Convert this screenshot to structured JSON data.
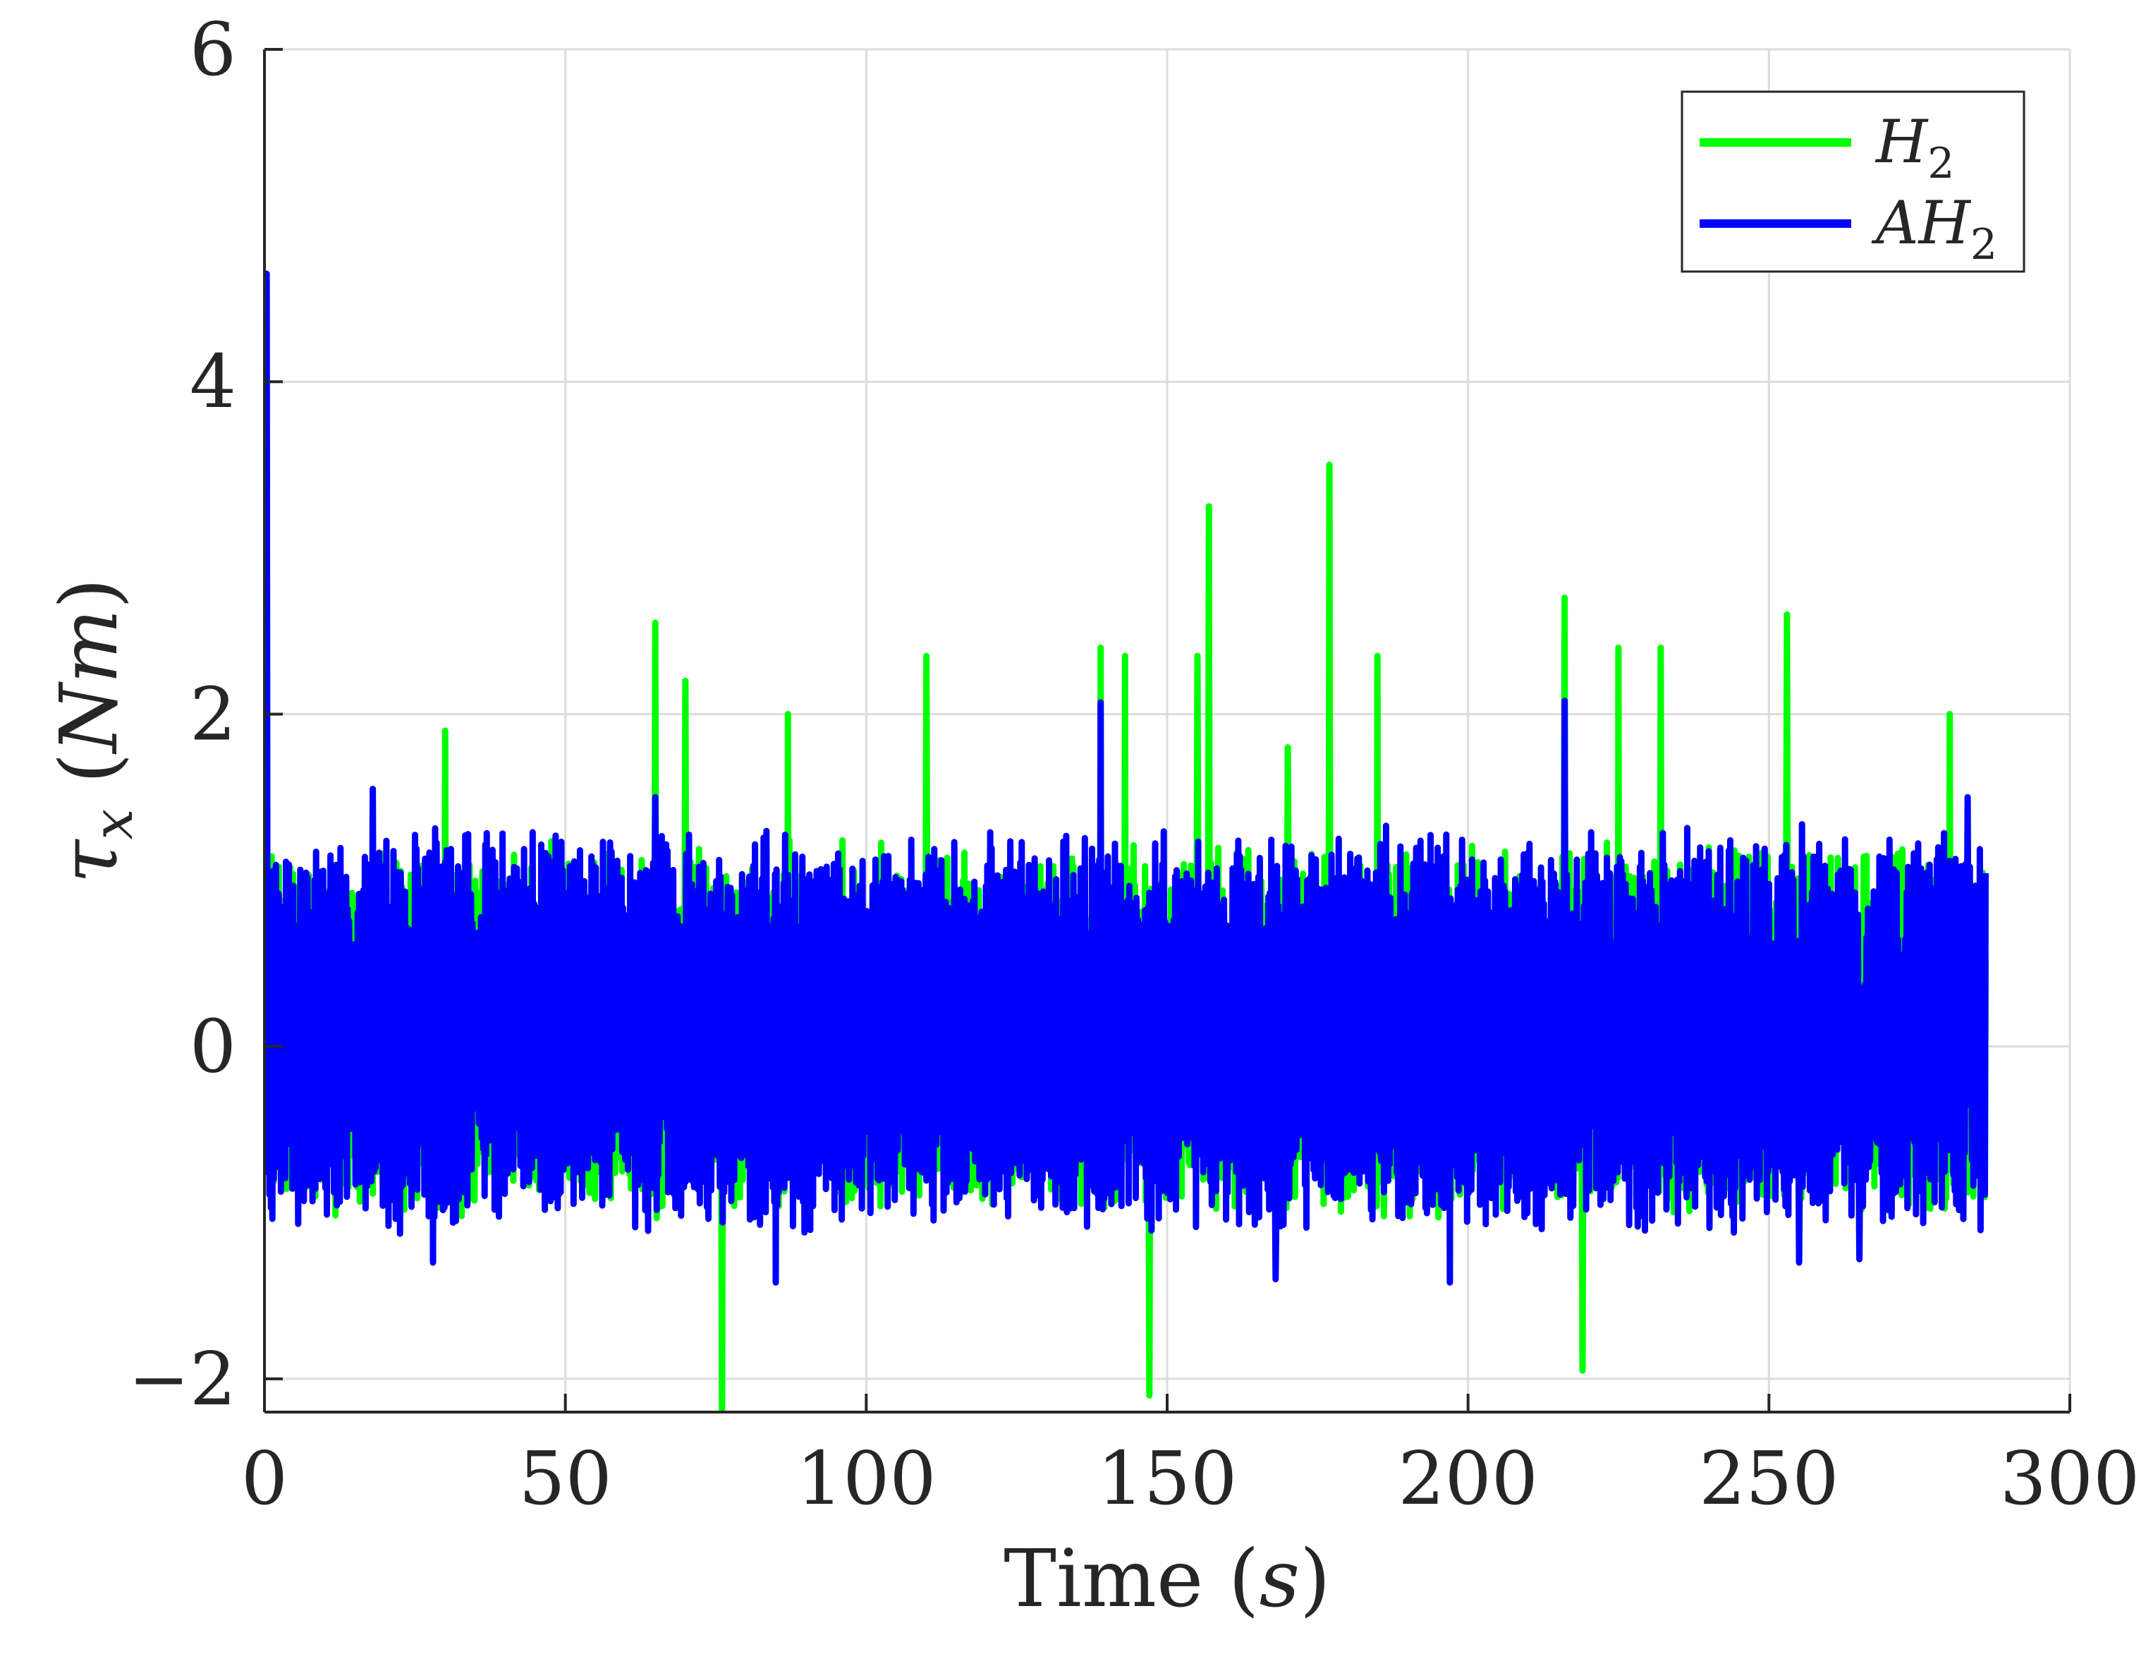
{
  "chart_data": {
    "type": "line",
    "xlabel": "Time",
    "xlabel_unit": "s",
    "ylabel_symbol": "τ",
    "ylabel_subscript": "x",
    "ylabel_unit": "Nm",
    "xlim": [
      0,
      300
    ],
    "ylim": [
      -2.2,
      6
    ],
    "xticks": [
      0,
      50,
      100,
      150,
      200,
      250,
      300
    ],
    "yticks": [
      -2,
      0,
      2,
      4,
      6
    ],
    "xtick_labels": [
      "0",
      "50",
      "100",
      "150",
      "200",
      "250",
      "300"
    ],
    "ytick_labels": [
      "−2",
      "0",
      "2",
      "4",
      "6"
    ],
    "grid": true,
    "legend_position": "top-right",
    "series": [
      {
        "name": "H",
        "name_subscript": "2",
        "color": "#00ff00",
        "x_range": [
          0,
          286
        ],
        "noise_floor": [
          -0.9,
          1.1
        ],
        "peaks": [
          {
            "x": 0.3,
            "y": 4.6
          },
          {
            "x": 30,
            "y": 1.9
          },
          {
            "x": 65,
            "y": 2.55
          },
          {
            "x": 70,
            "y": 2.2
          },
          {
            "x": 87,
            "y": 2.0
          },
          {
            "x": 110,
            "y": 2.35
          },
          {
            "x": 139,
            "y": 2.4
          },
          {
            "x": 143,
            "y": 2.35
          },
          {
            "x": 155,
            "y": 2.35
          },
          {
            "x": 157,
            "y": 3.25
          },
          {
            "x": 170,
            "y": 1.8
          },
          {
            "x": 177,
            "y": 3.5
          },
          {
            "x": 185,
            "y": 2.35
          },
          {
            "x": 216,
            "y": 2.7
          },
          {
            "x": 225,
            "y": 2.4
          },
          {
            "x": 232,
            "y": 2.4
          },
          {
            "x": 253,
            "y": 2.6
          },
          {
            "x": 280,
            "y": 2.0
          }
        ],
        "troughs": [
          {
            "x": 76,
            "y": -2.2
          },
          {
            "x": 147,
            "y": -2.1
          },
          {
            "x": 219,
            "y": -1.95
          }
        ]
      },
      {
        "name": "AH",
        "name_subscript": "2",
        "color": "#0000ff",
        "x_range": [
          0,
          286
        ],
        "noise_floor": [
          -1.0,
          1.2
        ],
        "peaks": [
          {
            "x": 0.3,
            "y": 4.65
          },
          {
            "x": 18,
            "y": 1.55
          },
          {
            "x": 65,
            "y": 1.5
          },
          {
            "x": 85,
            "y": 1.6
          },
          {
            "x": 139,
            "y": 2.07
          },
          {
            "x": 216,
            "y": 2.08
          },
          {
            "x": 283,
            "y": 1.5
          }
        ],
        "troughs": [
          {
            "x": 28,
            "y": -1.3
          },
          {
            "x": 85,
            "y": -1.42
          },
          {
            "x": 168,
            "y": -1.4
          },
          {
            "x": 197,
            "y": -1.42
          },
          {
            "x": 255,
            "y": -1.3
          },
          {
            "x": 265,
            "y": -1.28
          }
        ]
      }
    ]
  }
}
